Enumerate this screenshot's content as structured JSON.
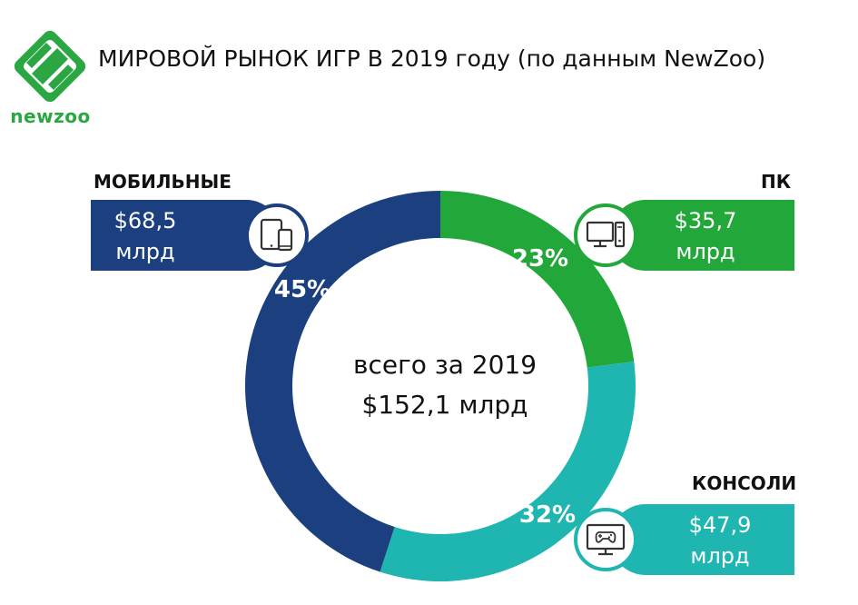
{
  "logo": {
    "text": "newzoo",
    "color": "#2aa742"
  },
  "title": "МИРОВОЙ РЫНОК ИГР В 2019 году (по данным NewZoo)",
  "center": {
    "line1": "всего за 2019",
    "line2": "$152,1 млрд"
  },
  "colors": {
    "mobile": "#1c3f7f",
    "pc": "#22a73a",
    "console": "#1fb5b0"
  },
  "chart_data": {
    "type": "pie",
    "style": "donut",
    "legend": "none",
    "total": {
      "label": "всего за 2019",
      "value": "$152,1 млрд"
    },
    "slices": [
      {
        "key": "pc",
        "name": "ПК",
        "percent": 23,
        "percent_label": "23%",
        "value": 35.7,
        "value_label": "$35,7",
        "unit": "млрд",
        "icon": "desktop-computer-icon",
        "color": "#22a73a"
      },
      {
        "key": "console",
        "name": "КОНСОЛИ",
        "percent": 32,
        "percent_label": "32%",
        "value": 47.9,
        "value_label": "$47,9",
        "unit": "млрд",
        "icon": "tv-gamepad-icon",
        "color": "#1fb5b0"
      },
      {
        "key": "mobile",
        "name": "МОБИЛЬНЫЕ",
        "percent": 45,
        "percent_label": "45%",
        "value": 68.5,
        "value_label": "$68,5",
        "unit": "млрд",
        "icon": "tablet-phone-icon",
        "color": "#1c3f7f"
      }
    ]
  }
}
